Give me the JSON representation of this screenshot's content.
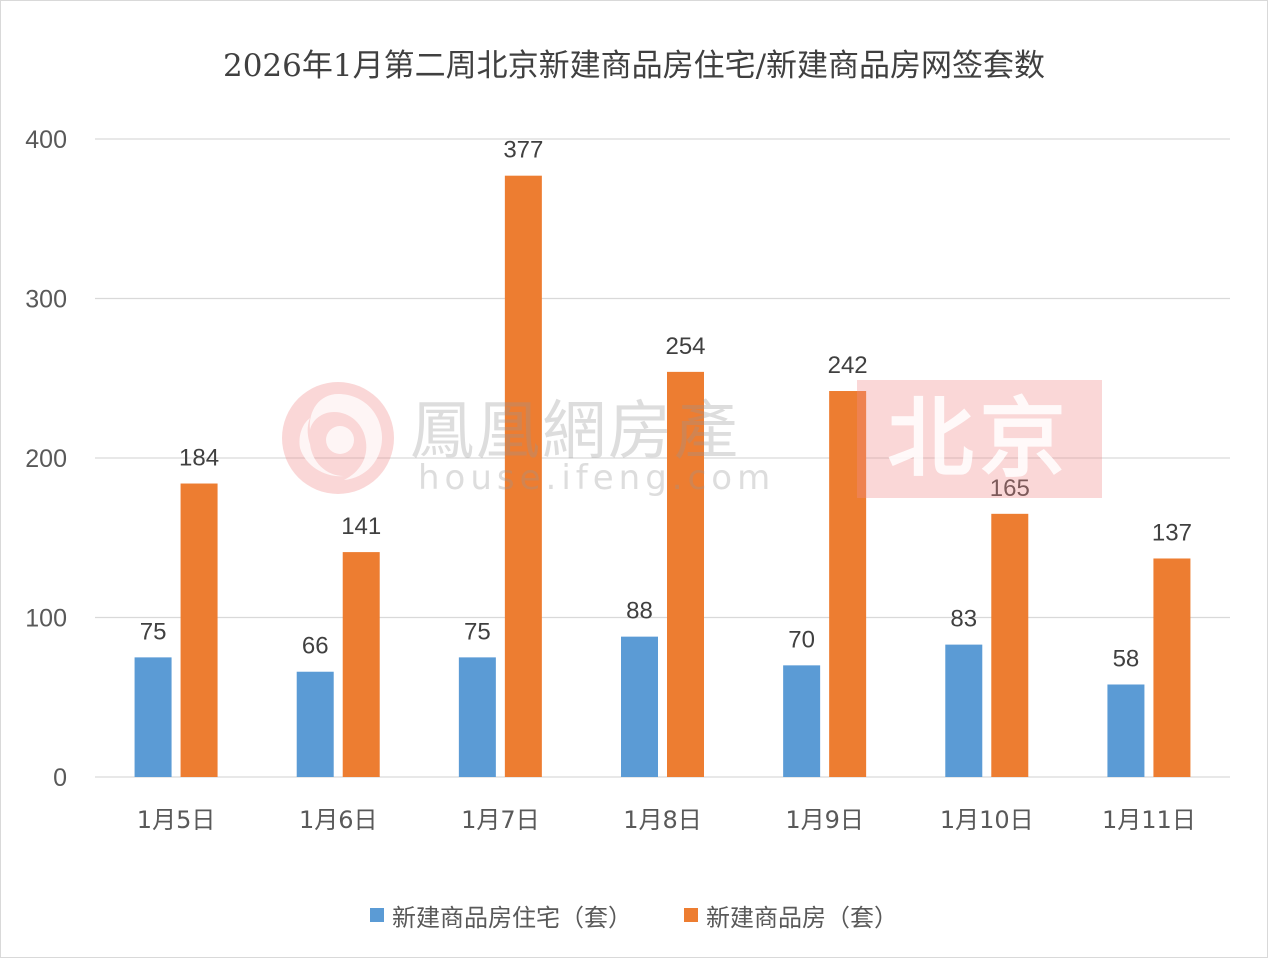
{
  "chart_data": {
    "type": "bar",
    "title": "2026年1月第二周北京新建商品房住宅/新建商品房网签套数",
    "categories": [
      "1月5日",
      "1月6日",
      "1月7日",
      "1月8日",
      "1月9日",
      "1月10日",
      "1月11日"
    ],
    "series": [
      {
        "name": "新建商品房住宅（套）",
        "values": [
          75,
          66,
          75,
          88,
          70,
          83,
          58
        ],
        "color": "#5b9bd5"
      },
      {
        "name": "新建商品房（套）",
        "values": [
          184,
          141,
          377,
          254,
          242,
          165,
          137
        ],
        "color": "#ed7d31"
      }
    ],
    "ylim": [
      0,
      400
    ],
    "yticks": [
      0,
      100,
      200,
      300,
      400
    ],
    "grid": true,
    "legend_position": "bottom",
    "data_labels": true
  },
  "watermark": {
    "brand": "鳳凰網房產",
    "url": "house.ifeng.com",
    "city": "北京"
  }
}
